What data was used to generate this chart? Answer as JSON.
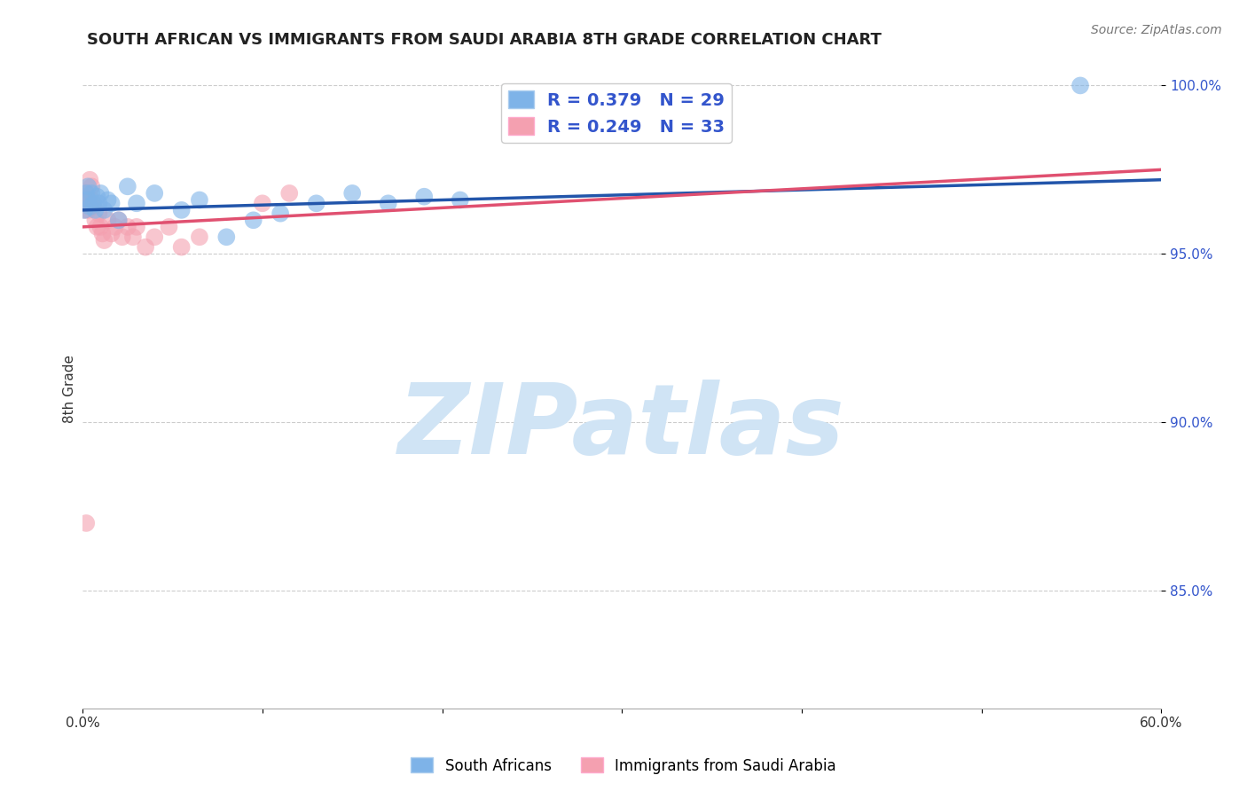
{
  "title": "SOUTH AFRICAN VS IMMIGRANTS FROM SAUDI ARABIA 8TH GRADE CORRELATION CHART",
  "source_text": "Source: ZipAtlas.com",
  "ylabel": "8th Grade",
  "x_min": 0.0,
  "x_max": 0.6,
  "y_min": 0.815,
  "y_max": 1.005,
  "x_ticks": [
    0.0,
    0.1,
    0.2,
    0.3,
    0.4,
    0.5,
    0.6
  ],
  "x_tick_labels": [
    "0.0%",
    "",
    "",
    "",
    "",
    "",
    "60.0%"
  ],
  "y_ticks": [
    0.85,
    0.9,
    0.95,
    1.0
  ],
  "y_tick_labels": [
    "85.0%",
    "90.0%",
    "95.0%",
    "100.0%"
  ],
  "blue_R": 0.379,
  "blue_N": 29,
  "pink_R": 0.249,
  "pink_N": 33,
  "blue_color": "#7EB3E8",
  "pink_color": "#F4A0B0",
  "blue_line_color": "#2255AA",
  "pink_line_color": "#E05070",
  "legend_text_color": "#3355CC",
  "watermark_color": "#D0E4F5",
  "watermark_text": "ZIPatlas",
  "blue_scatter_x": [
    0.001,
    0.002,
    0.003,
    0.003,
    0.004,
    0.005,
    0.006,
    0.007,
    0.008,
    0.009,
    0.01,
    0.012,
    0.014,
    0.016,
    0.02,
    0.025,
    0.03,
    0.04,
    0.055,
    0.065,
    0.08,
    0.095,
    0.11,
    0.13,
    0.15,
    0.17,
    0.19,
    0.21,
    0.555
  ],
  "blue_scatter_y": [
    0.963,
    0.968,
    0.966,
    0.97,
    0.964,
    0.968,
    0.965,
    0.963,
    0.967,
    0.965,
    0.968,
    0.963,
    0.966,
    0.965,
    0.96,
    0.97,
    0.965,
    0.968,
    0.963,
    0.966,
    0.955,
    0.96,
    0.962,
    0.965,
    0.968,
    0.965,
    0.967,
    0.966,
    1.0
  ],
  "pink_scatter_x": [
    0.001,
    0.001,
    0.002,
    0.002,
    0.003,
    0.003,
    0.004,
    0.004,
    0.005,
    0.005,
    0.006,
    0.007,
    0.008,
    0.009,
    0.01,
    0.011,
    0.012,
    0.014,
    0.016,
    0.018,
    0.02,
    0.022,
    0.025,
    0.028,
    0.03,
    0.035,
    0.04,
    0.048,
    0.055,
    0.065,
    0.1,
    0.115,
    0.002
  ],
  "pink_scatter_y": [
    0.963,
    0.967,
    0.968,
    0.965,
    0.966,
    0.963,
    0.972,
    0.965,
    0.97,
    0.966,
    0.964,
    0.96,
    0.958,
    0.962,
    0.958,
    0.956,
    0.954,
    0.96,
    0.956,
    0.958,
    0.96,
    0.955,
    0.958,
    0.955,
    0.958,
    0.952,
    0.955,
    0.958,
    0.952,
    0.955,
    0.965,
    0.968,
    0.87
  ],
  "blue_trend_x": [
    0.0,
    0.6
  ],
  "blue_trend_y": [
    0.963,
    0.972
  ],
  "pink_trend_x": [
    0.0,
    0.6
  ],
  "pink_trend_y": [
    0.958,
    0.975
  ]
}
